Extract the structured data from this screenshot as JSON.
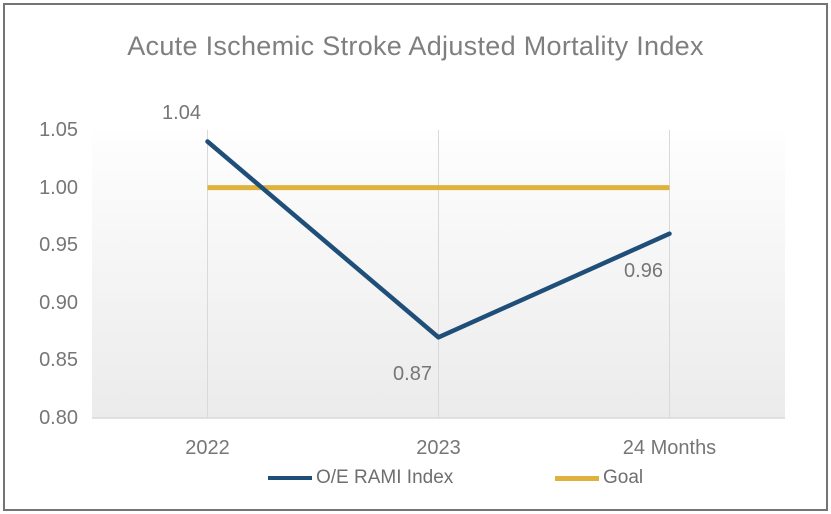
{
  "chart_data": {
    "type": "line",
    "title": "Acute Ischemic Stroke Adjusted Mortality Index",
    "categories": [
      "2022",
      "2023",
      "24 Months"
    ],
    "series": [
      {
        "name": "O/E RAMI Index",
        "values": [
          1.04,
          0.87,
          0.96
        ],
        "color": "#1f4e79",
        "data_labels": [
          "1.04",
          "0.87",
          "0.96"
        ],
        "label_positions": [
          "above",
          "below",
          "below"
        ]
      },
      {
        "name": "Goal",
        "values": [
          1.0,
          1.0,
          1.0
        ],
        "color": "#dfb23d"
      }
    ],
    "ylim": [
      0.8,
      1.05
    ],
    "ytick_step": 0.05,
    "ytick_labels": [
      "0.80",
      "0.85",
      "0.90",
      "0.95",
      "1.00",
      "1.05"
    ],
    "grid": "vertical-only",
    "legend_position": "bottom",
    "colors": {
      "grid": "#d9d9d9",
      "axis_line": "#d9d9d9",
      "plot_gradient_top": "#fefefe",
      "plot_gradient_bottom": "#ebebeb",
      "tick_text": "#767676",
      "title_text": "#7f7f7f",
      "frame_border": "#747474"
    }
  }
}
